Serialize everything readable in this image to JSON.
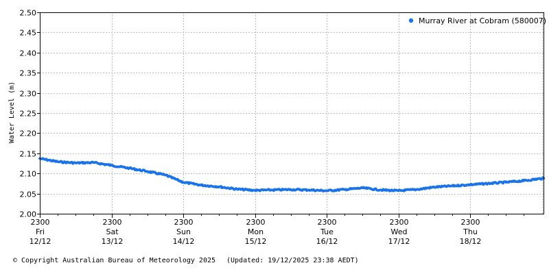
{
  "chart_data": {
    "type": "scatter",
    "title": "",
    "xlabel": "",
    "ylabel": "Water Level (m)",
    "ylim": [
      2.0,
      2.5
    ],
    "yticks": [
      "2.00",
      "2.05",
      "2.10",
      "2.15",
      "2.20",
      "2.25",
      "2.30",
      "2.35",
      "2.40",
      "2.45",
      "2.50"
    ],
    "xlim": [
      "2025-12-12 23:00",
      "2025-12-19 23:38"
    ],
    "xticks": [
      {
        "time": "2300",
        "day": "Fri",
        "date": "12/12"
      },
      {
        "time": "2300",
        "day": "Sat",
        "date": "13/12"
      },
      {
        "time": "2300",
        "day": "Sun",
        "date": "14/12"
      },
      {
        "time": "2300",
        "day": "Mon",
        "date": "15/12"
      },
      {
        "time": "2300",
        "day": "Tue",
        "date": "16/12"
      },
      {
        "time": "2300",
        "day": "Wed",
        "date": "17/12"
      },
      {
        "time": "2300",
        "day": "Thu",
        "date": "18/12"
      }
    ],
    "grid": true,
    "legend_position": "top-right",
    "series": [
      {
        "name": "Murray River at Cobram (580007)",
        "color": "#1a73e8",
        "points": [
          {
            "t": "2025-12-12 23:00",
            "v": 2.137
          },
          {
            "t": "2025-12-13 05:00",
            "v": 2.129
          },
          {
            "t": "2025-12-13 11:00",
            "v": 2.126
          },
          {
            "t": "2025-12-13 17:00",
            "v": 2.127
          },
          {
            "t": "2025-12-13 23:00",
            "v": 2.12
          },
          {
            "t": "2025-12-14 05:00",
            "v": 2.113
          },
          {
            "t": "2025-12-14 11:00",
            "v": 2.105
          },
          {
            "t": "2025-12-14 17:00",
            "v": 2.096
          },
          {
            "t": "2025-12-14 23:00",
            "v": 2.078
          },
          {
            "t": "2025-12-15 05:00",
            "v": 2.071
          },
          {
            "t": "2025-12-15 11:00",
            "v": 2.067
          },
          {
            "t": "2025-12-15 17:00",
            "v": 2.061
          },
          {
            "t": "2025-12-15 23:00",
            "v": 2.058
          },
          {
            "t": "2025-12-16 05:00",
            "v": 2.059
          },
          {
            "t": "2025-12-16 11:00",
            "v": 2.06
          },
          {
            "t": "2025-12-16 17:00",
            "v": 2.059
          },
          {
            "t": "2025-12-16 23:00",
            "v": 2.057
          },
          {
            "t": "2025-12-17 05:00",
            "v": 2.06
          },
          {
            "t": "2025-12-17 11:00",
            "v": 2.064
          },
          {
            "t": "2025-12-17 17:00",
            "v": 2.059
          },
          {
            "t": "2025-12-17 23:00",
            "v": 2.057
          },
          {
            "t": "2025-12-18 05:00",
            "v": 2.06
          },
          {
            "t": "2025-12-18 11:00",
            "v": 2.066
          },
          {
            "t": "2025-12-18 17:00",
            "v": 2.069
          },
          {
            "t": "2025-12-18 23:00",
            "v": 2.072
          },
          {
            "t": "2025-12-19 05:00",
            "v": 2.075
          },
          {
            "t": "2025-12-19 11:00",
            "v": 2.078
          },
          {
            "t": "2025-12-19 17:00",
            "v": 2.082
          },
          {
            "t": "2025-12-19 23:38",
            "v": 2.088
          }
        ]
      }
    ]
  },
  "footer": {
    "copyright": "© Copyright Australian Bureau of Meteorology 2025",
    "updated": "(Updated: 19/12/2025 23:38 AEDT)"
  }
}
